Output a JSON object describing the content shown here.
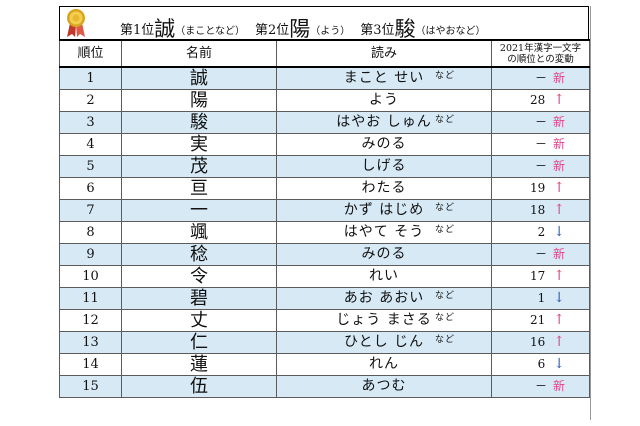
{
  "banner": {
    "first_label": "第1位",
    "first_name": "誠",
    "first_reading": "（まことなど）",
    "second_label": "第2位",
    "second_name": "陽",
    "second_reading": "（よう）",
    "third_label": "第3位",
    "third_name": "駿",
    "third_reading": "（はやおなど）"
  },
  "header": {
    "rank": "順位",
    "name": "名前",
    "reading": "読み",
    "change_line1": "2021年漢字一文字",
    "change_line2": "の順位との変動"
  },
  "colors": {
    "shade": "#d6e9f5",
    "up": "#e0458a",
    "down": "#2b5fbf",
    "new": "#e0458a"
  },
  "rows": [
    {
      "rank": "1",
      "name": "誠",
      "reading": "まこと せい",
      "nado": "など",
      "prev": "－",
      "change": "新",
      "kind": "new"
    },
    {
      "rank": "2",
      "name": "陽",
      "reading": "よう",
      "nado": "",
      "prev": "28",
      "change": "↑",
      "kind": "up"
    },
    {
      "rank": "3",
      "name": "駿",
      "reading": "はやお しゅん",
      "nado": "など",
      "prev": "－",
      "change": "新",
      "kind": "new"
    },
    {
      "rank": "4",
      "name": "実",
      "reading": "みのる",
      "nado": "",
      "prev": "－",
      "change": "新",
      "kind": "new"
    },
    {
      "rank": "5",
      "name": "茂",
      "reading": "しげる",
      "nado": "",
      "prev": "－",
      "change": "新",
      "kind": "new"
    },
    {
      "rank": "6",
      "name": "亘",
      "reading": "わたる",
      "nado": "",
      "prev": "19",
      "change": "↑",
      "kind": "up"
    },
    {
      "rank": "7",
      "name": "一",
      "reading": "かず はじめ",
      "nado": "など",
      "prev": "18",
      "change": "↑",
      "kind": "up"
    },
    {
      "rank": "8",
      "name": "颯",
      "reading": "はやて そう",
      "nado": "など",
      "prev": "2",
      "change": "↓",
      "kind": "down"
    },
    {
      "rank": "9",
      "name": "稔",
      "reading": "みのる",
      "nado": "",
      "prev": "－",
      "change": "新",
      "kind": "new"
    },
    {
      "rank": "10",
      "name": "令",
      "reading": "れい",
      "nado": "",
      "prev": "17",
      "change": "↑",
      "kind": "up"
    },
    {
      "rank": "11",
      "name": "碧",
      "reading": "あお あおい",
      "nado": "など",
      "prev": "1",
      "change": "↓",
      "kind": "down"
    },
    {
      "rank": "12",
      "name": "丈",
      "reading": "じょう まさる",
      "nado": "など",
      "prev": "21",
      "change": "↑",
      "kind": "up"
    },
    {
      "rank": "13",
      "name": "仁",
      "reading": "ひとし じん",
      "nado": "など",
      "prev": "16",
      "change": "↑",
      "kind": "up"
    },
    {
      "rank": "14",
      "name": "蓮",
      "reading": "れん",
      "nado": "",
      "prev": "6",
      "change": "↓",
      "kind": "down"
    },
    {
      "rank": "15",
      "name": "伍",
      "reading": "あつむ",
      "nado": "",
      "prev": "－",
      "change": "新",
      "kind": "new"
    }
  ]
}
